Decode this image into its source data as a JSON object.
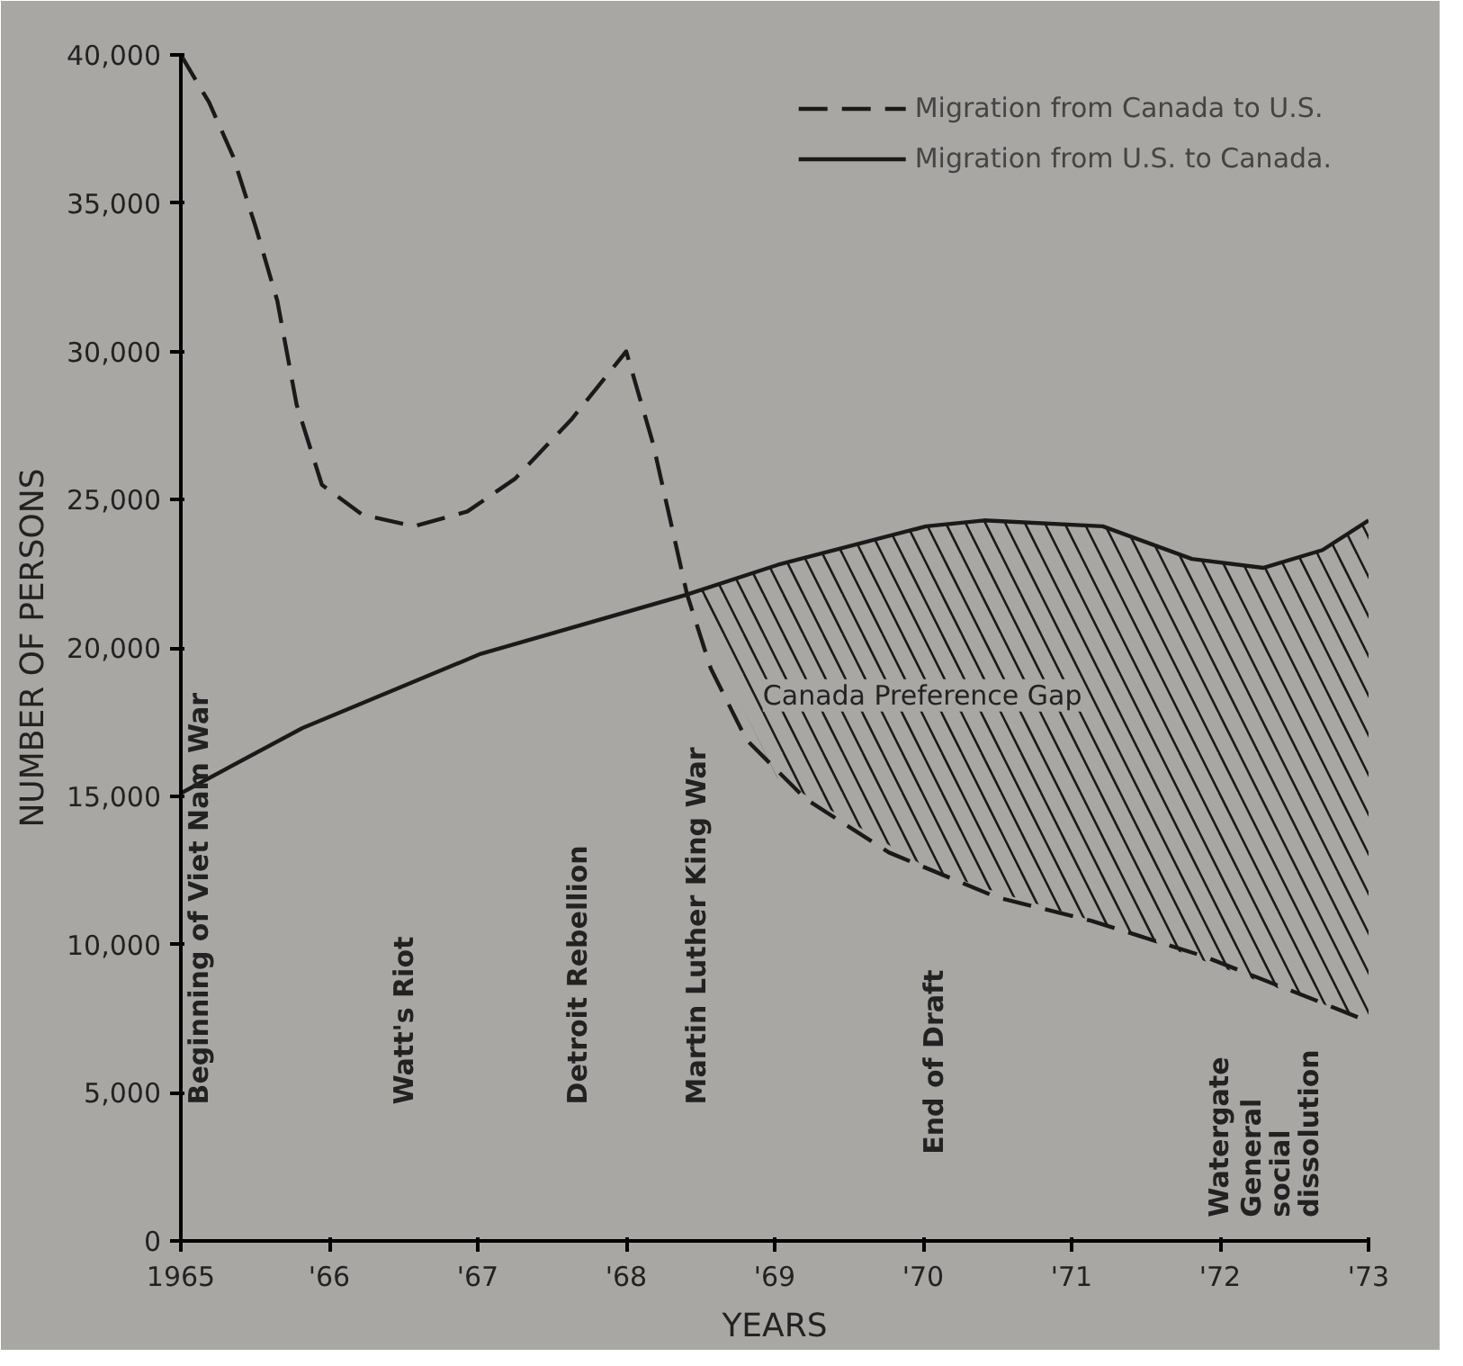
{
  "chart_data": {
    "type": "line",
    "xlabel": "YEARS",
    "ylabel": "NUMBER OF PERSONS",
    "xlim": [
      1965,
      1973
    ],
    "ylim": [
      0,
      40000
    ],
    "xticks": [
      1965,
      {
        "value": 1966,
        "label": "'66"
      },
      {
        "value": 1967,
        "label": "'67"
      },
      {
        "value": 1968,
        "label": "'68"
      },
      {
        "value": 1969,
        "label": "'69"
      },
      {
        "value": 1970,
        "label": "'70"
      },
      {
        "value": 1971,
        "label": "'71"
      },
      {
        "value": 1972,
        "label": "'72"
      },
      {
        "value": 1973,
        "label": "'73"
      }
    ],
    "yticks": [
      0,
      {
        "value": 5000,
        "label": "5,000"
      },
      {
        "value": 10000,
        "label": "10,000"
      },
      {
        "value": 15000,
        "label": "15,000"
      },
      {
        "value": 20000,
        "label": "20,000"
      },
      {
        "value": 25000,
        "label": "25,000"
      },
      {
        "value": 30000,
        "label": "30,000"
      },
      {
        "value": 35000,
        "label": "35,000"
      },
      {
        "value": 40000,
        "label": "40,000"
      }
    ],
    "grid": false,
    "legend": "top right",
    "marker": "none",
    "series": [
      {
        "name": "Migration from Canada to U.S.",
        "color": "#1a1a1a",
        "line_style": "dashed",
        "x": [
          1965,
          1965.19,
          1965.35,
          1965.51,
          1965.65,
          1965.78,
          1965.95,
          1966.22,
          1966.57,
          1966.93,
          1967.25,
          1967.63,
          1968,
          1968.18,
          1968.41,
          1968.57,
          1968.81,
          1969.21,
          1969.77,
          1970.49,
          1971.13,
          1971.89,
          1972.6,
          1973
        ],
        "values": [
          40000,
          38400,
          36600,
          34100,
          31700,
          28200,
          25500,
          24500,
          24100,
          24600,
          25700,
          27700,
          30000,
          26900,
          21800,
          19300,
          16900,
          14900,
          13100,
          11600,
          10800,
          9600,
          8200,
          7400
        ]
      },
      {
        "name": "Migration from U.S. to Canada.",
        "color": "#1a1a1a",
        "line_style": "solid",
        "x": [
          1965,
          1965.82,
          1967.02,
          1968.41,
          1969.02,
          1970.02,
          1970.41,
          1971.21,
          1971.81,
          1972.29,
          1972.69,
          1973
        ],
        "values": [
          15100,
          17300,
          19800,
          21800,
          22800,
          24100,
          24300,
          24100,
          23000,
          22700,
          23300,
          24300
        ],
        "lower": [
          null,
          null,
          null,
          21800,
          15600,
          12600,
          11900,
          10700,
          9600,
          8700,
          8000,
          7400
        ],
        "upper": [
          null,
          null,
          null,
          21800,
          22800,
          24100,
          24300,
          24100,
          23000,
          22700,
          23300,
          24300
        ]
      }
    ],
    "annotations": [
      "Beginning of Viet Nam War",
      "Watt's Riot",
      "Detroit Rebellion",
      "Martin Luther King War",
      "End of Draft",
      "Watergate",
      "General\nsocial\ndissolution",
      "Canada Preference Gap"
    ]
  }
}
